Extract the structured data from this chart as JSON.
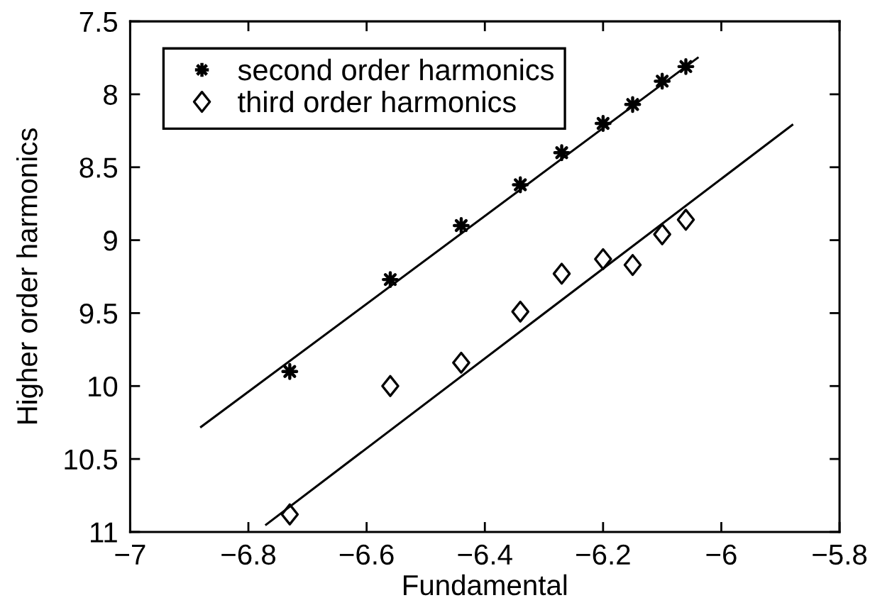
{
  "chart_data": {
    "type": "scatter",
    "xlabel": "Fundamental",
    "ylabel": "Higher order harmonics",
    "xlim": [
      -7,
      -5.8
    ],
    "xticks": [
      {
        "value": -7,
        "label": "−7"
      },
      {
        "value": -6.8,
        "label": "−6.8"
      },
      {
        "value": -6.6,
        "label": "−6.6"
      },
      {
        "value": -6.4,
        "label": "−6.4"
      },
      {
        "value": -6.2,
        "label": "−6.2"
      },
      {
        "value": -6,
        "label": "−6"
      },
      {
        "value": -5.8,
        "label": "−5.8"
      }
    ],
    "ylim": [
      11,
      7.5
    ],
    "yticks": [
      7.5,
      8,
      8.5,
      9,
      9.5,
      10,
      10.5,
      11
    ],
    "legend": "top left",
    "series": [
      {
        "name": "second order harmonics",
        "marker": "star",
        "color": "#000000",
        "x": [
          -6.73,
          -6.56,
          -6.44,
          -6.34,
          -6.27,
          -6.2,
          -6.15,
          -6.1,
          -6.06
        ],
        "values": [
          9.9,
          9.27,
          8.9,
          8.62,
          8.4,
          8.2,
          8.07,
          7.91,
          7.81
        ]
      },
      {
        "name": "third order harmonics",
        "marker": "diamond",
        "color": "#000000",
        "x": [
          -6.73,
          -6.56,
          -6.44,
          -6.34,
          -6.27,
          -6.2,
          -6.15,
          -6.1,
          -6.06
        ],
        "values": [
          10.88,
          10.0,
          9.84,
          9.49,
          9.23,
          9.13,
          9.17,
          8.96,
          8.86
        ]
      },
      {
        "type": "line",
        "marker": "none",
        "color": "#000000",
        "x": [
          -6.88,
          -6.04
        ],
        "values": [
          10.28,
          7.75
        ]
      },
      {
        "type": "line",
        "marker": "none",
        "color": "#000000",
        "x": [
          -6.77,
          -5.88
        ],
        "values": [
          10.95,
          8.21
        ]
      }
    ]
  }
}
